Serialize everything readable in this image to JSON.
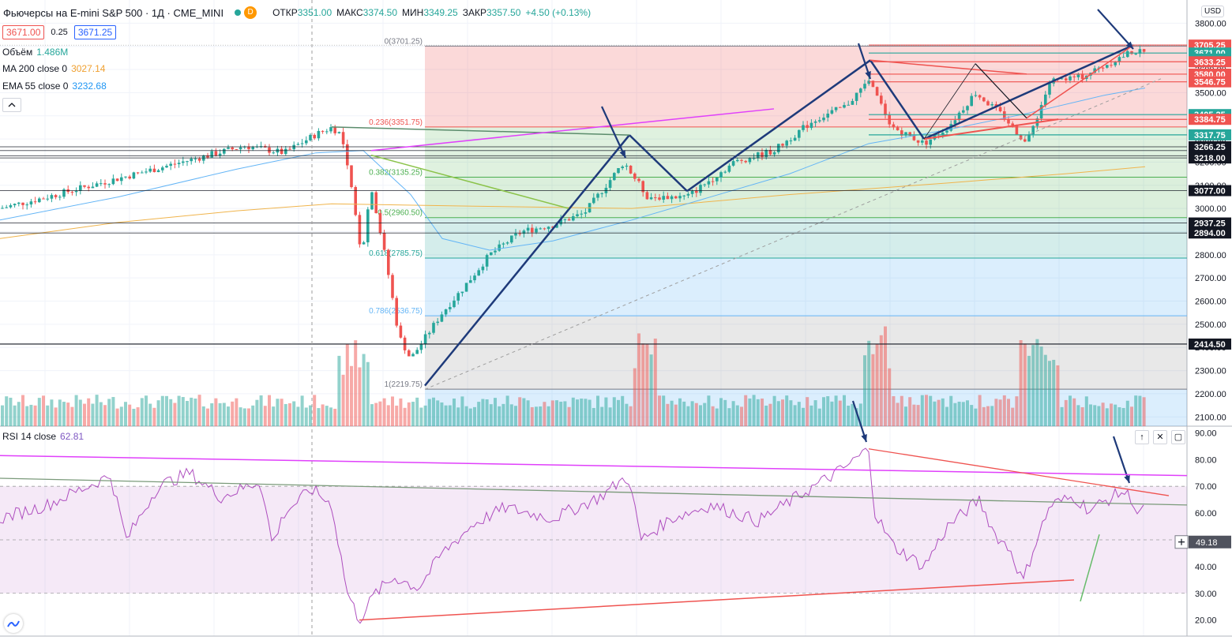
{
  "header": {
    "title": "Фьючерсы на E-mini S&P 500 · 1Д · CME_MINI",
    "interval_badge": "D",
    "open_label": "ОТКР",
    "open": "3351.00",
    "high_label": "МАКС",
    "high": "3374.50",
    "low_label": "МИН",
    "low": "3349.25",
    "close_label": "ЗАКР",
    "close": "3357.50",
    "change": "+4.50 (+0.13%)"
  },
  "quote": {
    "sell": "3671.00",
    "spread": "0.25",
    "buy": "3671.25"
  },
  "indicators": {
    "volume": {
      "label": "Объём",
      "value": "1.486M"
    },
    "ma200": {
      "label": "MA 200 close 0",
      "value": "3027.14"
    },
    "ema55": {
      "label": "EMA 55 close 0",
      "value": "3232.68"
    }
  },
  "currency": "USD",
  "rsi": {
    "label": "RSI 14 close",
    "value": "62.81",
    "current_tag": "49.18",
    "buttons": [
      "↑",
      "✕",
      "▢"
    ]
  },
  "colors": {
    "up": "#26a69a",
    "down": "#ef5350",
    "ma200": "#f0b44c",
    "ema55": "#64b5f6",
    "rsi": "#9c27b0",
    "trend": "#1e3a7a"
  },
  "chart_data": [
    {
      "type": "candlestick",
      "title": "",
      "price_axis_ticks": [
        2100,
        2200,
        2300,
        2400,
        2500,
        2600,
        2700,
        2800,
        2900,
        3000,
        3100,
        3200,
        3300,
        3400,
        3500,
        3600,
        3700,
        3800
      ],
      "price_range": [
        2060,
        3900
      ],
      "fibonacci": [
        {
          "level": "0",
          "price": 3701.25,
          "label": "0(3701.25)"
        },
        {
          "level": "0.236",
          "price": 3351.75,
          "label": "0.236(3351.75)"
        },
        {
          "level": "0.382",
          "price": 3135.25,
          "label": "0.382(3135.25)"
        },
        {
          "level": "0.5",
          "price": 2960.5,
          "label": "0.5(2960.50)"
        },
        {
          "level": "0.618",
          "price": 2785.75,
          "label": "0.618(2785.75)"
        },
        {
          "level": "0.786",
          "price": 2536.75,
          "label": "0.786(2536.75)"
        },
        {
          "level": "1",
          "price": 2219.75,
          "label": "1(2219.75)"
        }
      ],
      "price_tags": [
        {
          "price": 3705.25,
          "text": "3705.25",
          "color": "#ef5350"
        },
        {
          "price": 3671.0,
          "text": "3671.00",
          "color": "#26a69a"
        },
        {
          "price": 3645.0,
          "text": "16:32:11",
          "color": "#26a69a"
        },
        {
          "price": 3633.25,
          "text": "3633.25",
          "color": "#ef5350"
        },
        {
          "price": 3580.0,
          "text": "3580.00",
          "color": "#ef5350"
        },
        {
          "price": 3546.75,
          "text": "3546.75",
          "color": "#ef5350"
        },
        {
          "price": 3405.25,
          "text": "3405.25",
          "color": "#26a69a"
        },
        {
          "price": 3384.75,
          "text": "3384.75",
          "color": "#ef5350"
        },
        {
          "price": 3317.75,
          "text": "3317.75",
          "color": "#26a69a"
        },
        {
          "price": 3266.25,
          "text": "3266.25",
          "color": "#131722"
        },
        {
          "price": 3227.5,
          "text": "3227.50",
          "color": "#131722"
        },
        {
          "price": 3218.0,
          "text": "3218.00",
          "color": "#131722"
        },
        {
          "price": 3077.0,
          "text": "3077.00",
          "color": "#131722"
        },
        {
          "price": 2937.25,
          "text": "2937.25",
          "color": "#131722"
        },
        {
          "price": 2894.0,
          "text": "2894.00",
          "color": "#131722"
        },
        {
          "price": 2414.5,
          "text": "2414.50",
          "color": "#131722"
        }
      ]
    },
    {
      "type": "line",
      "title": "",
      "axis_ticks": [
        20,
        30,
        40,
        50,
        60,
        70,
        80,
        90
      ],
      "range": [
        14,
        91
      ],
      "band": [
        30,
        70
      ],
      "midline": 50
    }
  ]
}
